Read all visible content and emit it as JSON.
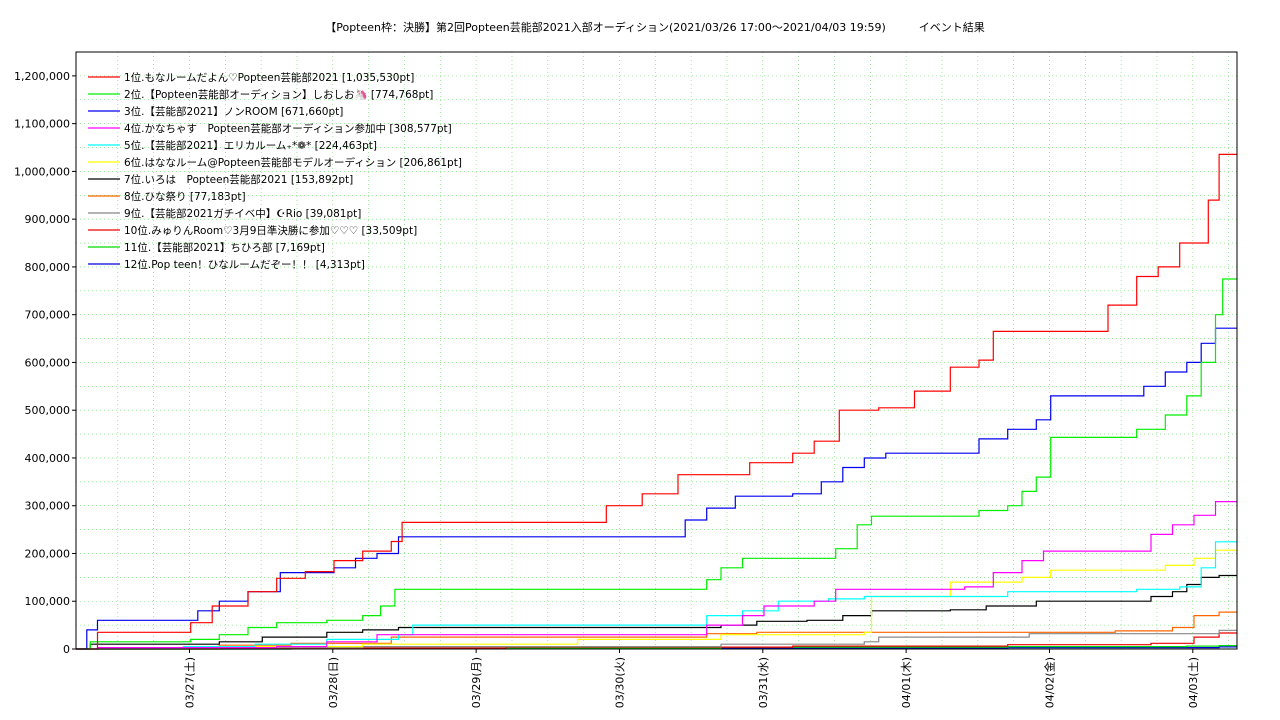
{
  "chart_data": {
    "type": "line",
    "title": "【Popteen枠：決勝】第2回Popteen芸能部2021入部オーディション(2021/03/26 17:00～2021/04/03 19:59)　　　イベント結果",
    "xlabel": "",
    "ylabel": "",
    "x_tick_labels": [
      "03/27(土)",
      "03/28(日)",
      "03/29(月)",
      "03/30(火)",
      "03/31(水)",
      "04/01(木)",
      "04/02(金)",
      "04/03(土)"
    ],
    "xlim": [
      "2021/03/26 17:00",
      "2021/04/03 19:59"
    ],
    "ylim": [
      0,
      1250000
    ],
    "y_ticks": [
      0,
      100000,
      200000,
      300000,
      400000,
      500000,
      600000,
      700000,
      800000,
      900000,
      1000000,
      1100000,
      1200000
    ],
    "y_tick_labels": [
      "0",
      "100,000",
      "200,000",
      "300,000",
      "400,000",
      "500,000",
      "600,000",
      "700,000",
      "800,000",
      "900,000",
      "1,000,000",
      "1,100,000",
      "1,200,000"
    ],
    "grid": true,
    "legend_position": "top-left",
    "series": [
      {
        "name": "1位.もなルームだよん♡Popteen芸能部2021 [1,035,530pt]",
        "color": "#ff0000",
        "points": [
          [
            0,
            0
          ],
          [
            0.3,
            35000
          ],
          [
            1.5,
            35000
          ],
          [
            1.6,
            55000
          ],
          [
            1.9,
            90000
          ],
          [
            2.4,
            120000
          ],
          [
            2.8,
            148000
          ],
          [
            3.2,
            162000
          ],
          [
            3.6,
            185000
          ],
          [
            4.0,
            205000
          ],
          [
            4.4,
            225000
          ],
          [
            4.55,
            265000
          ],
          [
            7.1,
            265000
          ],
          [
            7.4,
            300000
          ],
          [
            7.9,
            325000
          ],
          [
            8.4,
            365000
          ],
          [
            9.1,
            365000
          ],
          [
            9.4,
            390000
          ],
          [
            10.0,
            410000
          ],
          [
            10.3,
            435000
          ],
          [
            10.65,
            500000
          ],
          [
            11.2,
            505000
          ],
          [
            11.7,
            540000
          ],
          [
            12.2,
            590000
          ],
          [
            12.6,
            605000
          ],
          [
            12.8,
            665000
          ],
          [
            14.1,
            665000
          ],
          [
            14.4,
            720000
          ],
          [
            14.8,
            780000
          ],
          [
            15.1,
            800000
          ],
          [
            15.4,
            850000
          ],
          [
            15.8,
            940000
          ],
          [
            15.95,
            1035530
          ]
        ]
      },
      {
        "name": "2位.【Popteen芸能部オーディション】しおしお🦄 [774,768pt]",
        "color": "#00ee00",
        "points": [
          [
            0,
            0
          ],
          [
            0.2,
            15000
          ],
          [
            1.6,
            20000
          ],
          [
            2.0,
            30000
          ],
          [
            2.4,
            45000
          ],
          [
            2.8,
            55000
          ],
          [
            3.5,
            60000
          ],
          [
            4.0,
            70000
          ],
          [
            4.25,
            90000
          ],
          [
            4.45,
            125000
          ],
          [
            8.5,
            125000
          ],
          [
            8.8,
            145000
          ],
          [
            9.0,
            170000
          ],
          [
            9.3,
            190000
          ],
          [
            10.3,
            190000
          ],
          [
            10.6,
            210000
          ],
          [
            10.9,
            260000
          ],
          [
            11.1,
            278000
          ],
          [
            12.3,
            278000
          ],
          [
            12.6,
            290000
          ],
          [
            13.0,
            300000
          ],
          [
            13.2,
            330000
          ],
          [
            13.4,
            360000
          ],
          [
            13.6,
            443000
          ],
          [
            14.6,
            443000
          ],
          [
            14.8,
            460000
          ],
          [
            15.2,
            490000
          ],
          [
            15.5,
            530000
          ],
          [
            15.7,
            600000
          ],
          [
            15.9,
            700000
          ],
          [
            16.0,
            774768
          ]
        ]
      },
      {
        "name": "3位.【芸能部2021】ノンROOM [671,660pt]",
        "color": "#0000ee",
        "points": [
          [
            0,
            0
          ],
          [
            0.15,
            40000
          ],
          [
            0.3,
            60000
          ],
          [
            1.4,
            60000
          ],
          [
            1.7,
            80000
          ],
          [
            2.0,
            100000
          ],
          [
            2.4,
            120000
          ],
          [
            2.85,
            160000
          ],
          [
            3.6,
            170000
          ],
          [
            3.9,
            190000
          ],
          [
            4.2,
            200000
          ],
          [
            4.5,
            235000
          ],
          [
            8.2,
            235000
          ],
          [
            8.5,
            270000
          ],
          [
            8.8,
            295000
          ],
          [
            9.2,
            320000
          ],
          [
            10.0,
            325000
          ],
          [
            10.4,
            350000
          ],
          [
            10.7,
            380000
          ],
          [
            11.0,
            400000
          ],
          [
            11.3,
            410000
          ],
          [
            12.3,
            410000
          ],
          [
            12.6,
            440000
          ],
          [
            13.0,
            460000
          ],
          [
            13.4,
            480000
          ],
          [
            13.6,
            530000
          ],
          [
            14.6,
            530000
          ],
          [
            14.9,
            550000
          ],
          [
            15.2,
            580000
          ],
          [
            15.5,
            600000
          ],
          [
            15.7,
            640000
          ],
          [
            15.9,
            671660
          ]
        ]
      },
      {
        "name": "4位.かなちゃす　Popteen芸能部オーディション参加中 [308,577pt]",
        "color": "#ff00ff",
        "points": [
          [
            0,
            0
          ],
          [
            0.3,
            3000
          ],
          [
            2.8,
            5000
          ],
          [
            3.5,
            15000
          ],
          [
            4.2,
            30000
          ],
          [
            5.0,
            30000
          ],
          [
            8.5,
            30000
          ],
          [
            8.8,
            50000
          ],
          [
            9.3,
            70000
          ],
          [
            9.6,
            90000
          ],
          [
            10.3,
            100000
          ],
          [
            10.6,
            125000
          ],
          [
            11.5,
            125000
          ],
          [
            12.4,
            130000
          ],
          [
            12.8,
            160000
          ],
          [
            13.2,
            185000
          ],
          [
            13.5,
            205000
          ],
          [
            14.7,
            205000
          ],
          [
            15.0,
            240000
          ],
          [
            15.3,
            260000
          ],
          [
            15.6,
            280000
          ],
          [
            15.9,
            308577
          ]
        ]
      },
      {
        "name": "5位.【芸能部2021】エリカルーム₊*❁* [224,463pt]",
        "color": "#00ffff",
        "points": [
          [
            0,
            0
          ],
          [
            1.5,
            5000
          ],
          [
            2.5,
            10000
          ],
          [
            3.5,
            20000
          ],
          [
            4.5,
            30000
          ],
          [
            4.7,
            50000
          ],
          [
            8.5,
            50000
          ],
          [
            8.8,
            70000
          ],
          [
            9.3,
            80000
          ],
          [
            9.8,
            100000
          ],
          [
            10.5,
            105000
          ],
          [
            11.0,
            110000
          ],
          [
            12.6,
            110000
          ],
          [
            13.0,
            120000
          ],
          [
            14.8,
            125000
          ],
          [
            15.4,
            130000
          ],
          [
            15.7,
            170000
          ],
          [
            15.9,
            224463
          ]
        ]
      },
      {
        "name": "6位.はななルーム@Popteen芸能部モデルオーディション [206,861pt]",
        "color": "#ffff00",
        "points": [
          [
            0,
            0
          ],
          [
            2.0,
            5000
          ],
          [
            4.0,
            10000
          ],
          [
            7.0,
            20000
          ],
          [
            9.0,
            30000
          ],
          [
            11.0,
            35000
          ],
          [
            11.1,
            110000
          ],
          [
            12.0,
            110000
          ],
          [
            12.2,
            140000
          ],
          [
            12.9,
            140000
          ],
          [
            13.2,
            150000
          ],
          [
            13.6,
            165000
          ],
          [
            14.8,
            165000
          ],
          [
            15.2,
            175000
          ],
          [
            15.6,
            190000
          ],
          [
            15.9,
            206861
          ]
        ]
      },
      {
        "name": "7位.いろは　Popteen芸能部2021 [153,892pt]",
        "color": "#000000",
        "points": [
          [
            0,
            0
          ],
          [
            0.2,
            10000
          ],
          [
            1.5,
            10000
          ],
          [
            2.0,
            15000
          ],
          [
            2.6,
            25000
          ],
          [
            3.5,
            35000
          ],
          [
            4.0,
            40000
          ],
          [
            4.5,
            45000
          ],
          [
            8.5,
            45000
          ],
          [
            9.0,
            50000
          ],
          [
            9.5,
            58000
          ],
          [
            10.2,
            60000
          ],
          [
            10.7,
            70000
          ],
          [
            11.1,
            80000
          ],
          [
            12.2,
            82000
          ],
          [
            12.7,
            90000
          ],
          [
            13.4,
            100000
          ],
          [
            14.7,
            100000
          ],
          [
            15.0,
            110000
          ],
          [
            15.3,
            120000
          ],
          [
            15.5,
            135000
          ],
          [
            15.7,
            150000
          ],
          [
            15.95,
            153892
          ]
        ]
      },
      {
        "name": "8位.ひな祭り [77,183pt]",
        "color": "#ff6600",
        "points": [
          [
            0,
            0
          ],
          [
            1.5,
            5000
          ],
          [
            2.0,
            8000
          ],
          [
            3.0,
            12000
          ],
          [
            4.4,
            25000
          ],
          [
            8.3,
            25000
          ],
          [
            8.8,
            32000
          ],
          [
            9.5,
            35000
          ],
          [
            13.2,
            35000
          ],
          [
            14.5,
            38000
          ],
          [
            15.3,
            45000
          ],
          [
            15.6,
            70000
          ],
          [
            15.95,
            77183
          ]
        ]
      },
      {
        "name": "9位.【芸能部2021ガチイベ中】☪Rio [39,081pt]",
        "color": "#888888",
        "points": [
          [
            0,
            0
          ],
          [
            1.5,
            3000
          ],
          [
            4.0,
            5000
          ],
          [
            8.5,
            5000
          ],
          [
            9.0,
            10000
          ],
          [
            11.0,
            15000
          ],
          [
            11.2,
            25000
          ],
          [
            13.0,
            25000
          ],
          [
            13.3,
            32000
          ],
          [
            15.6,
            32000
          ],
          [
            15.95,
            39081
          ]
        ]
      },
      {
        "name": "10位.みゅりんRoom♡3月9日準決勝に参加♡♡♡ [33,509pt]",
        "color": "#ee0000",
        "points": [
          [
            0,
            0
          ],
          [
            2.0,
            2000
          ],
          [
            6.0,
            4000
          ],
          [
            10.0,
            6000
          ],
          [
            13.0,
            9000
          ],
          [
            15.0,
            12000
          ],
          [
            15.6,
            25000
          ],
          [
            15.95,
            33509
          ]
        ]
      },
      {
        "name": "11位.【芸能部2021】ちひろ部 [7,169pt]",
        "color": "#00dd00",
        "points": [
          [
            0,
            0
          ],
          [
            3.0,
            2000
          ],
          [
            9.0,
            4000
          ],
          [
            13.0,
            5000
          ],
          [
            15.5,
            6000
          ],
          [
            15.95,
            7169
          ]
        ]
      },
      {
        "name": "12位.Pop teen！ひなルームだぞー！！ [4,313pt]",
        "color": "#0000dd",
        "points": [
          [
            0,
            0
          ],
          [
            3.0,
            1000
          ],
          [
            9.0,
            2000
          ],
          [
            13.0,
            3000
          ],
          [
            15.95,
            4313
          ]
        ]
      }
    ]
  }
}
